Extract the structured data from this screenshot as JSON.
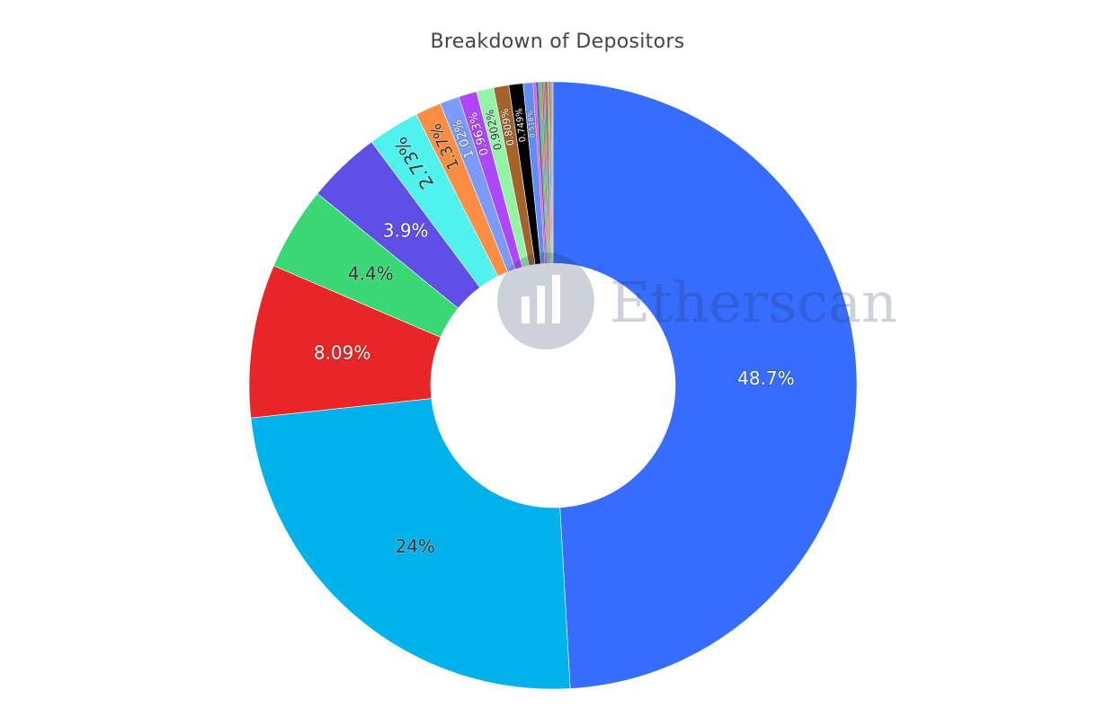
{
  "chart_data": {
    "type": "pie",
    "donut": true,
    "title": "Breakdown of Depositors",
    "values": [
      48.7,
      24,
      8.09,
      4.4,
      3.9,
      2.73,
      1.37,
      1.02,
      0.963,
      0.902,
      0.809,
      0.749,
      0.518,
      0.15,
      0.12,
      0.1,
      0.09,
      0.08,
      0.07,
      0.06,
      0.06,
      0.05,
      0.05,
      0.04,
      0.04,
      0.03,
      0.03,
      0.03,
      0.02,
      0.02
    ],
    "labels": [
      "48.7%",
      "24%",
      "8.09%",
      "4.4%",
      "3.9%",
      "2.73%",
      "1.37%",
      "1.02%",
      "0.963%",
      "0.902%",
      "0.809%",
      "0.749%",
      "0.518%",
      "",
      "",
      "",
      "",
      "",
      "",
      "",
      "",
      "",
      "",
      "",
      "",
      "",
      "",
      "",
      "",
      ""
    ],
    "colors": [
      "#366dfe",
      "#00b2ea",
      "#e82627",
      "#3ad874",
      "#5e4fe7",
      "#4ff2ec",
      "#fd8d42",
      "#7b9bfc",
      "#b046fb",
      "#92f5a6",
      "#a5622b",
      "#000000",
      "#5e8cf9",
      "#fb5ab5",
      "#3b5bdb",
      "#2ecc71",
      "#e67e22",
      "#9b59b6",
      "#1abc9c",
      "#e74c3c",
      "#34495e",
      "#16a085",
      "#f39c12",
      "#8e44ad",
      "#2c3e50",
      "#d35400",
      "#27ae60",
      "#c0392b",
      "#7f8c8d",
      "#2980b9"
    ],
    "label_colors": [
      "#ffffff",
      "#333333",
      "#ffffff",
      "#333333",
      "#ffffff",
      "#333333",
      "#333333",
      "#ffffff",
      "#ffffff",
      "#333333",
      "#ffffff",
      "#ffffff",
      "#ffffff",
      "#ffffff",
      "#ffffff",
      "#ffffff",
      "#ffffff",
      "#ffffff",
      "#ffffff",
      "#ffffff",
      "#ffffff",
      "#ffffff",
      "#ffffff",
      "#ffffff",
      "#ffffff",
      "#ffffff",
      "#ffffff",
      "#ffffff",
      "#ffffff",
      "#ffffff"
    ],
    "label_font_size": [
      20,
      20,
      20,
      20,
      20,
      20,
      17,
      14,
      13,
      12,
      11,
      10,
      8,
      0,
      0,
      0,
      0,
      0,
      0,
      0,
      0,
      0,
      0,
      0,
      0,
      0,
      0,
      0,
      0,
      0
    ],
    "label_rotated": [
      false,
      false,
      false,
      false,
      false,
      true,
      true,
      true,
      true,
      true,
      true,
      true,
      true,
      false,
      false,
      false,
      false,
      false,
      false,
      false,
      false,
      false,
      false,
      false,
      false,
      false,
      false,
      false,
      false,
      false
    ],
    "direction": "clockwise",
    "start_angle": "12 o'clock",
    "legend": "none"
  },
  "watermark": {
    "text": "Etherscan"
  }
}
